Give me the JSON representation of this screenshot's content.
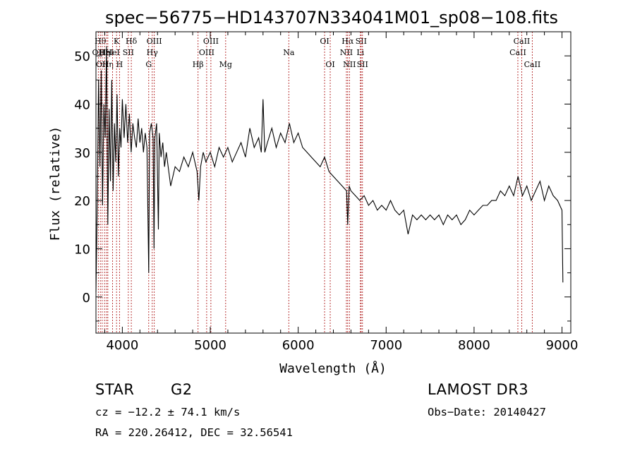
{
  "chart_data": {
    "type": "line",
    "title": "spec−56775−HD143707N334041M01_sp08−108.fits",
    "xlabel": "Wavelength (Å)",
    "ylabel": "Flux (relative)",
    "xlim": [
      3700,
      9100
    ],
    "ylim": [
      -7.5,
      55
    ],
    "x_ticks": [
      4000,
      5000,
      6000,
      7000,
      8000,
      9000
    ],
    "y_ticks": [
      0,
      10,
      20,
      30,
      40,
      50
    ],
    "grid": false,
    "series": [
      {
        "name": "flux",
        "points": [
          [
            3700,
            1
          ],
          [
            3715,
            20
          ],
          [
            3730,
            45
          ],
          [
            3745,
            27
          ],
          [
            3760,
            47
          ],
          [
            3775,
            19
          ],
          [
            3790,
            40
          ],
          [
            3805,
            33
          ],
          [
            3820,
            52
          ],
          [
            3835,
            15
          ],
          [
            3850,
            39
          ],
          [
            3865,
            24
          ],
          [
            3880,
            45
          ],
          [
            3895,
            22
          ],
          [
            3910,
            36
          ],
          [
            3925,
            28
          ],
          [
            3940,
            42
          ],
          [
            3955,
            25
          ],
          [
            3970,
            35
          ],
          [
            3985,
            31
          ],
          [
            4000,
            41
          ],
          [
            4020,
            33
          ],
          [
            4040,
            40
          ],
          [
            4060,
            32
          ],
          [
            4080,
            38
          ],
          [
            4100,
            30
          ],
          [
            4120,
            36
          ],
          [
            4140,
            33
          ],
          [
            4160,
            31
          ],
          [
            4180,
            37
          ],
          [
            4200,
            32
          ],
          [
            4220,
            35
          ],
          [
            4240,
            30
          ],
          [
            4260,
            34
          ],
          [
            4280,
            31
          ],
          [
            4300,
            5
          ],
          [
            4310,
            34
          ],
          [
            4330,
            36
          ],
          [
            4350,
            33
          ],
          [
            4360,
            10
          ],
          [
            4370,
            33
          ],
          [
            4390,
            36
          ],
          [
            4410,
            14
          ],
          [
            4420,
            34
          ],
          [
            4440,
            29
          ],
          [
            4460,
            32
          ],
          [
            4480,
            27
          ],
          [
            4500,
            30
          ],
          [
            4550,
            23
          ],
          [
            4600,
            27
          ],
          [
            4650,
            26
          ],
          [
            4700,
            29
          ],
          [
            4750,
            27
          ],
          [
            4800,
            30
          ],
          [
            4850,
            26
          ],
          [
            4870,
            20
          ],
          [
            4890,
            27
          ],
          [
            4920,
            30
          ],
          [
            4950,
            28
          ],
          [
            5000,
            30
          ],
          [
            5050,
            27
          ],
          [
            5100,
            31
          ],
          [
            5150,
            29
          ],
          [
            5200,
            31
          ],
          [
            5250,
            28
          ],
          [
            5300,
            30
          ],
          [
            5350,
            32
          ],
          [
            5400,
            29
          ],
          [
            5450,
            35
          ],
          [
            5500,
            31
          ],
          [
            5550,
            33
          ],
          [
            5580,
            30
          ],
          [
            5600,
            41
          ],
          [
            5620,
            30
          ],
          [
            5650,
            32
          ],
          [
            5700,
            35
          ],
          [
            5750,
            31
          ],
          [
            5800,
            34
          ],
          [
            5850,
            32
          ],
          [
            5900,
            36
          ],
          [
            5950,
            32
          ],
          [
            6000,
            34
          ],
          [
            6050,
            31
          ],
          [
            6100,
            30
          ],
          [
            6150,
            29
          ],
          [
            6200,
            28
          ],
          [
            6250,
            27
          ],
          [
            6300,
            29
          ],
          [
            6350,
            26
          ],
          [
            6400,
            25
          ],
          [
            6450,
            24
          ],
          [
            6500,
            23
          ],
          [
            6550,
            22
          ],
          [
            6563,
            15
          ],
          [
            6580,
            23
          ],
          [
            6600,
            22
          ],
          [
            6650,
            21
          ],
          [
            6700,
            20
          ],
          [
            6750,
            21
          ],
          [
            6800,
            19
          ],
          [
            6850,
            20
          ],
          [
            6900,
            18
          ],
          [
            6950,
            19
          ],
          [
            7000,
            18
          ],
          [
            7050,
            20
          ],
          [
            7100,
            18
          ],
          [
            7150,
            17
          ],
          [
            7200,
            18
          ],
          [
            7250,
            13
          ],
          [
            7300,
            17
          ],
          [
            7350,
            16
          ],
          [
            7400,
            17
          ],
          [
            7450,
            16
          ],
          [
            7500,
            17
          ],
          [
            7550,
            16
          ],
          [
            7600,
            17
          ],
          [
            7650,
            15
          ],
          [
            7700,
            17
          ],
          [
            7750,
            16
          ],
          [
            7800,
            17
          ],
          [
            7850,
            15
          ],
          [
            7900,
            16
          ],
          [
            7950,
            18
          ],
          [
            8000,
            17
          ],
          [
            8050,
            18
          ],
          [
            8100,
            19
          ],
          [
            8150,
            19
          ],
          [
            8200,
            20
          ],
          [
            8250,
            20
          ],
          [
            8300,
            22
          ],
          [
            8350,
            21
          ],
          [
            8400,
            23
          ],
          [
            8450,
            21
          ],
          [
            8500,
            25
          ],
          [
            8550,
            21
          ],
          [
            8600,
            23
          ],
          [
            8650,
            20
          ],
          [
            8700,
            22
          ],
          [
            8750,
            24
          ],
          [
            8800,
            20
          ],
          [
            8850,
            23
          ],
          [
            8900,
            21
          ],
          [
            8950,
            20
          ],
          [
            9000,
            18
          ],
          [
            9010,
            3
          ]
        ]
      }
    ],
    "spectral_lines": [
      {
        "wavelength": 3727,
        "label": "OII",
        "row": 2
      },
      {
        "wavelength": 3750,
        "label": "Hθ",
        "row": 1
      },
      {
        "wavelength": 3771,
        "label": "OII",
        "row": 3
      },
      {
        "wavelength": 3798,
        "label": "Hη",
        "row": 2
      },
      {
        "wavelength": 3820,
        "label": "HeI",
        "row": 2
      },
      {
        "wavelength": 3835,
        "label": "Hη",
        "row": 3
      },
      {
        "wavelength": 3889,
        "label": "HeI",
        "row": 2
      },
      {
        "wavelength": 3934,
        "label": "K",
        "row": 1
      },
      {
        "wavelength": 3968,
        "label": "H",
        "row": 3
      },
      {
        "wavelength": 4068,
        "label": "SII",
        "row": 2
      },
      {
        "wavelength": 4102,
        "label": "Hδ",
        "row": 1
      },
      {
        "wavelength": 4300,
        "label": "G",
        "row": 3
      },
      {
        "wavelength": 4340,
        "label": "Hγ",
        "row": 2
      },
      {
        "wavelength": 4363,
        "label": "OIII",
        "row": 1
      },
      {
        "wavelength": 4861,
        "label": "Hβ",
        "row": 3
      },
      {
        "wavelength": 4959,
        "label": "OIII",
        "row": 2
      },
      {
        "wavelength": 5007,
        "label": "OIII",
        "row": 1
      },
      {
        "wavelength": 5175,
        "label": "Mg",
        "row": 3
      },
      {
        "wavelength": 5893,
        "label": "Na",
        "row": 2
      },
      {
        "wavelength": 6300,
        "label": "OI",
        "row": 1
      },
      {
        "wavelength": 6364,
        "label": "OI",
        "row": 3
      },
      {
        "wavelength": 6548,
        "label": "NII",
        "row": 2
      },
      {
        "wavelength": 6563,
        "label": "Hα",
        "row": 1
      },
      {
        "wavelength": 6583,
        "label": "NII",
        "row": 3
      },
      {
        "wavelength": 6707,
        "label": "Li",
        "row": 2
      },
      {
        "wavelength": 6716,
        "label": "SII",
        "row": 1
      },
      {
        "wavelength": 6731,
        "label": "SII",
        "row": 3
      },
      {
        "wavelength": 8498,
        "label": "CaII",
        "row": 2
      },
      {
        "wavelength": 8542,
        "label": "CaII",
        "row": 1
      },
      {
        "wavelength": 8662,
        "label": "CaII",
        "row": 3
      }
    ]
  },
  "info": {
    "object_class": "STAR",
    "subclass": "G2",
    "survey": "LAMOST DR3",
    "redshift": "cz = −12.2 ± 74.1 km/s",
    "obs_date": "Obs−Date: 20140427",
    "coords": "RA = 220.26412, DEC =  32.56541"
  },
  "colors": {
    "line_marker": "#b22222",
    "spectrum": "#000000",
    "axes": "#000000"
  }
}
